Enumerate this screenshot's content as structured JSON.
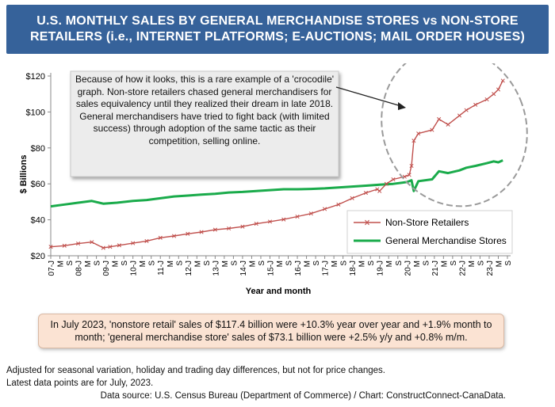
{
  "header": {
    "title": "U.S. MONTHLY SALES BY GENERAL MERCHANDISE STORES vs NON-STORE\nRETAILERS (i.e., INTERNET PLATFORMS; E-AUCTIONS; MAIL ORDER HOUSES)"
  },
  "annotation": "Because of how it looks, this is a rare example of a 'crocodile' graph. Non-store retailers chased general merchandisers for sales equivalency until they realized their dream in late 2018. General merchandisers have tried to fight back (with limited success) through adoption of the same tactic as their competition, selling online.",
  "summary": "In July 2023, 'nonstore retail' sales of $117.4 billion were +10.3% year over year and +1.9% month to month; 'general merchandise store' sales of $73.1 billion were +2.5% y/y and +0.8% m/m.",
  "footnotes": {
    "line1": "Adjusted for seasonal variation, holiday and trading day differences, but not for price changes.",
    "line2": "Latest data points are for July, 2023.",
    "source": "Data source: U.S. Census Bureau (Department of Commerce) / Chart: ConstructConnect-CanaData."
  },
  "colors": {
    "nonstore": "#c0504d",
    "general": "#1aab4b",
    "title_bg": "#36629a",
    "summary_bg": "#fbe3d3"
  },
  "chart_data": {
    "type": "line",
    "title": "U.S. MONTHLY SALES BY GENERAL MERCHANDISE STORES vs NON-STORE RETAILERS (i.e., INTERNET PLATFORMS; E-AUCTIONS; MAIL ORDER HOUSES)",
    "xlabel": "Year and month",
    "ylabel": "$ Billions",
    "ylim": [
      20,
      120
    ],
    "yticks": [
      "$20",
      "$40",
      "$60",
      "$80",
      "$100",
      "$120"
    ],
    "x_start": "2007-01",
    "x_end": "2023-09",
    "xticks": [
      "07-J",
      "M",
      "S",
      "08-J",
      "M",
      "S",
      "09-J",
      "M",
      "S",
      "10-J",
      "M",
      "S",
      "11-J",
      "M",
      "S",
      "12-J",
      "M",
      "S",
      "13-J",
      "M",
      "S",
      "14-J",
      "M",
      "S",
      "15-J",
      "M",
      "S",
      "16-J",
      "M",
      "S",
      "17-J",
      "M",
      "S",
      "18-J",
      "M",
      "S",
      "19-J",
      "M",
      "S",
      "20-J",
      "M",
      "S",
      "21-J",
      "M",
      "S",
      "22-J",
      "M",
      "S",
      "23-J",
      "M",
      "S"
    ],
    "legend_position": "bottom-right",
    "grid": false,
    "series": [
      {
        "name": "Non-Store Retailers",
        "color": "#c0504d",
        "marker": "x",
        "points": [
          [
            "2007-01",
            25.0
          ],
          [
            "2007-07",
            25.6
          ],
          [
            "2008-01",
            26.8
          ],
          [
            "2008-07",
            27.6
          ],
          [
            "2008-12",
            24.4
          ],
          [
            "2009-03",
            25.0
          ],
          [
            "2009-07",
            25.8
          ],
          [
            "2010-01",
            27.0
          ],
          [
            "2010-07",
            28.2
          ],
          [
            "2011-01",
            30.0
          ],
          [
            "2011-07",
            31.0
          ],
          [
            "2012-01",
            32.2
          ],
          [
            "2012-07",
            33.2
          ],
          [
            "2013-01",
            34.5
          ],
          [
            "2013-07",
            35.2
          ],
          [
            "2014-01",
            36.2
          ],
          [
            "2014-07",
            37.8
          ],
          [
            "2015-01",
            39.0
          ],
          [
            "2015-07",
            40.2
          ],
          [
            "2016-01",
            41.8
          ],
          [
            "2016-07",
            43.5
          ],
          [
            "2017-01",
            46.0
          ],
          [
            "2017-07",
            48.5
          ],
          [
            "2018-01",
            52.0
          ],
          [
            "2018-07",
            55.0
          ],
          [
            "2018-12",
            57.0
          ],
          [
            "2019-01",
            56.0
          ],
          [
            "2019-04",
            60.0
          ],
          [
            "2019-07",
            62.5
          ],
          [
            "2019-12",
            64.0
          ],
          [
            "2020-02",
            65.0
          ],
          [
            "2020-03",
            70.0
          ],
          [
            "2020-04",
            84.0
          ],
          [
            "2020-06",
            88.0
          ],
          [
            "2020-12",
            90.0
          ],
          [
            "2021-03",
            96.0
          ],
          [
            "2021-07",
            93.0
          ],
          [
            "2021-12",
            98.0
          ],
          [
            "2022-03",
            101.0
          ],
          [
            "2022-07",
            104.0
          ],
          [
            "2022-12",
            107.0
          ],
          [
            "2023-03",
            110.0
          ],
          [
            "2023-05",
            112.5
          ],
          [
            "2023-07",
            117.4
          ]
        ]
      },
      {
        "name": "General Merchandise Stores",
        "color": "#1aab4b",
        "marker": "none",
        "points": [
          [
            "2007-01",
            47.5
          ],
          [
            "2007-07",
            48.5
          ],
          [
            "2008-01",
            49.5
          ],
          [
            "2008-07",
            50.5
          ],
          [
            "2008-12",
            49.0
          ],
          [
            "2009-06",
            49.5
          ],
          [
            "2010-01",
            50.5
          ],
          [
            "2010-07",
            51.0
          ],
          [
            "2011-01",
            52.0
          ],
          [
            "2011-07",
            53.0
          ],
          [
            "2012-01",
            53.5
          ],
          [
            "2012-07",
            54.0
          ],
          [
            "2013-01",
            54.5
          ],
          [
            "2013-07",
            55.2
          ],
          [
            "2014-01",
            55.5
          ],
          [
            "2014-07",
            56.0
          ],
          [
            "2015-01",
            56.5
          ],
          [
            "2015-07",
            57.0
          ],
          [
            "2016-01",
            57.0
          ],
          [
            "2016-07",
            57.2
          ],
          [
            "2017-01",
            57.5
          ],
          [
            "2017-07",
            58.0
          ],
          [
            "2018-01",
            58.5
          ],
          [
            "2018-07",
            59.0
          ],
          [
            "2019-01",
            59.5
          ],
          [
            "2019-07",
            60.0
          ],
          [
            "2020-01",
            61.0
          ],
          [
            "2020-03",
            62.0
          ],
          [
            "2020-04",
            56.0
          ],
          [
            "2020-06",
            61.5
          ],
          [
            "2020-12",
            62.5
          ],
          [
            "2021-03",
            67.0
          ],
          [
            "2021-07",
            66.0
          ],
          [
            "2021-12",
            67.5
          ],
          [
            "2022-03",
            69.0
          ],
          [
            "2022-07",
            70.0
          ],
          [
            "2022-12",
            71.5
          ],
          [
            "2023-03",
            72.5
          ],
          [
            "2023-05",
            72.0
          ],
          [
            "2023-07",
            73.1
          ]
        ]
      }
    ]
  }
}
